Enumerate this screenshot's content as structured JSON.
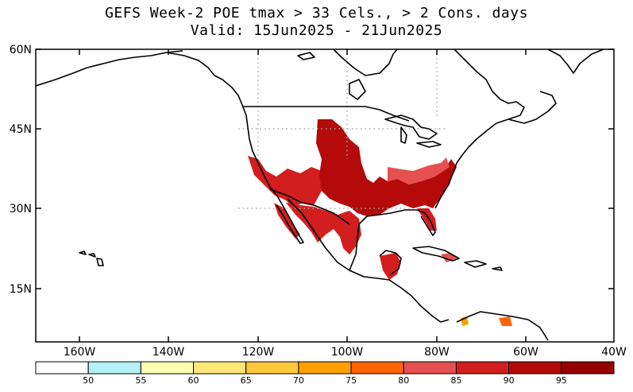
{
  "title_line1": "GEFS Week-2 POE tmax > 33 Cels., > 2 Cons. days",
  "title_line2": "Valid: 15Jun2025 - 21Jun2025",
  "lat_labels": [
    "60N",
    "45N",
    "30N",
    "15N"
  ],
  "lon_labels": [
    "160W",
    "140W",
    "120W",
    "100W",
    "80W",
    "60W",
    "40W"
  ],
  "colorbar": {
    "thresholds": [
      "50",
      "55",
      "60",
      "65",
      "70",
      "75",
      "80",
      "85",
      "90",
      "95"
    ],
    "colors": [
      "#ffffff",
      "#b4f0f5",
      "#ffffb4",
      "#ffe678",
      "#ffc83c",
      "#ffa000",
      "#ff6400",
      "#e65050",
      "#d21e1e",
      "#b40a0a",
      "#960000"
    ]
  },
  "colors": {
    "coastline": "#000000",
    "graticule": "#aaaaaa",
    "poe_high": "#b40a0a",
    "poe_mid": "#d21e1e",
    "poe_low": "#ff6400"
  }
}
